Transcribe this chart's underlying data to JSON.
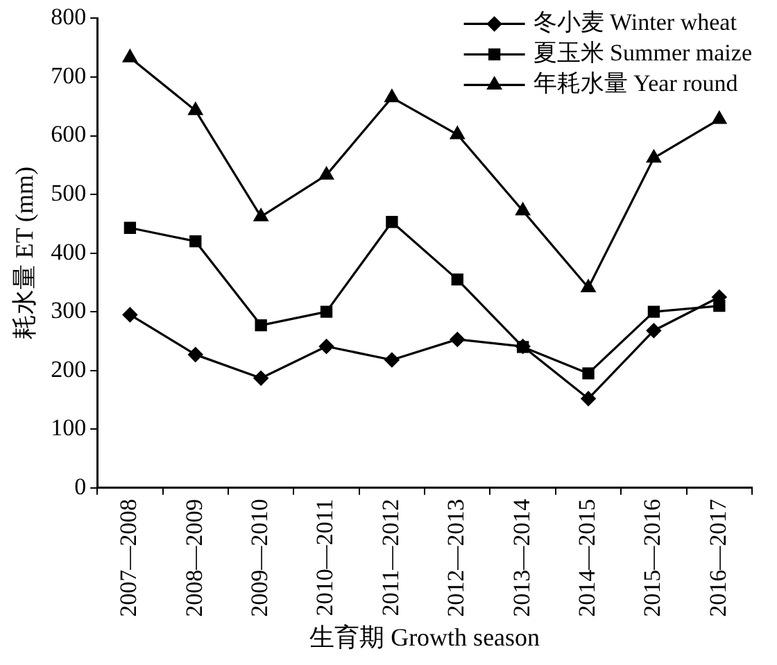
{
  "chart_data": {
    "type": "line",
    "xlabel": "生育期 Growth season",
    "ylabel": "耗水量 ET (mm)",
    "categories": [
      "2007—2008",
      "2008—2009",
      "2009—2010",
      "2010—2011",
      "2011—2012",
      "2012—2013",
      "2013—2014",
      "2014—2015",
      "2015—2016",
      "2016—2017"
    ],
    "series": [
      {
        "name": "冬小麦 Winter wheat",
        "color": "#000000",
        "marker": "diamond",
        "values": [
          295,
          227,
          187,
          241,
          218,
          253,
          241,
          152,
          268,
          325
        ]
      },
      {
        "name": "夏玉米 Summer maize",
        "color": "#000000",
        "marker": "square",
        "values": [
          443,
          420,
          277,
          300,
          453,
          355,
          240,
          195,
          300,
          310
        ]
      },
      {
        "name": "年耗水量 Year round",
        "color": "#000000",
        "marker": "triangle",
        "values": [
          733,
          643,
          462,
          533,
          665,
          602,
          472,
          341,
          562,
          628
        ]
      }
    ],
    "ylim": [
      0,
      800
    ],
    "yticks": [
      0,
      100,
      200,
      300,
      400,
      500,
      600,
      700,
      800
    ],
    "grid": false,
    "legend": "top right",
    "line_style": "solid"
  }
}
